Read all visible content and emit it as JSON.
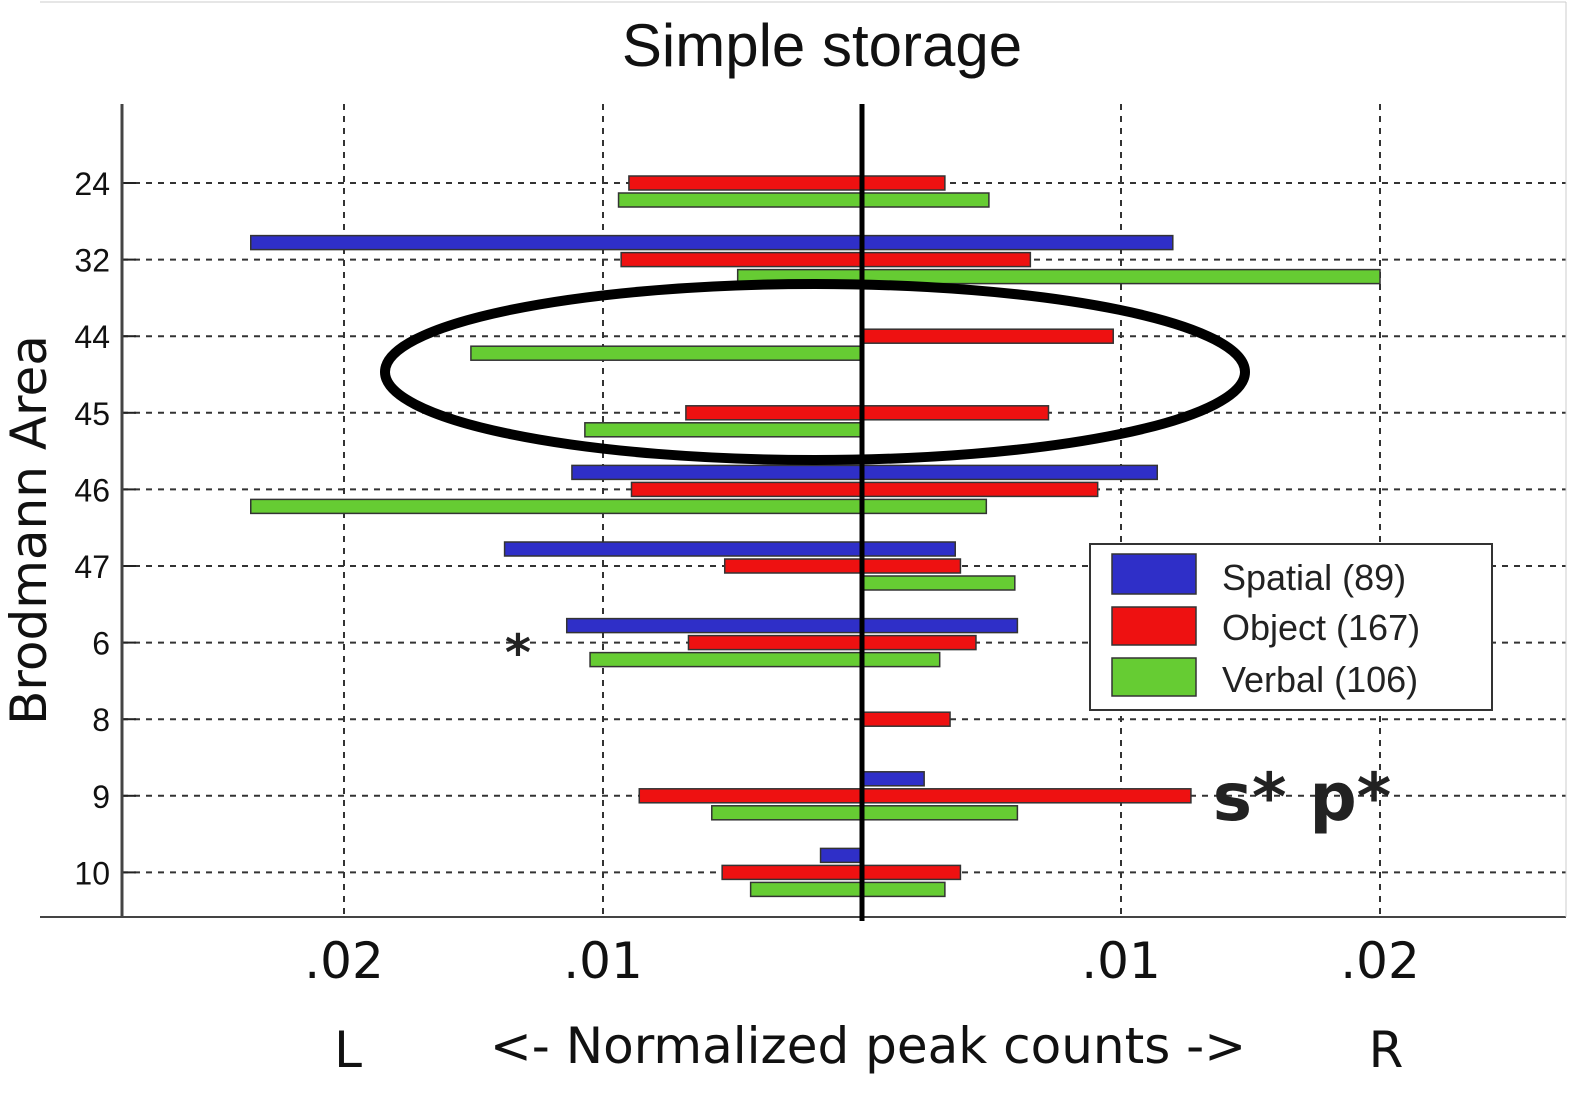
{
  "chart_data": {
    "type": "bar",
    "orientation": "horizontal-diverging",
    "title": "Simple storage",
    "ylabel": "Brodmann Area",
    "xlabel_left": "L",
    "xlabel": "<- Normalized peak counts ->",
    "xlabel_right": "R",
    "categories": [
      "24",
      "32",
      "44",
      "45",
      "46",
      "47",
      "6",
      "8",
      "9",
      "10"
    ],
    "xtick_values": [
      -0.02,
      -0.01,
      0.01,
      0.02
    ],
    "xtick_labels": [
      ".02",
      ".01",
      ".01",
      ".02"
    ],
    "xlim": [
      -0.0285,
      0.0265
    ],
    "grid": true,
    "legend_position": "right",
    "series": [
      {
        "name": "Spatial (89)",
        "color": "#2f2fc8",
        "left": [
          0,
          0.0236,
          0,
          0,
          0.0112,
          0.0138,
          0.0114,
          0,
          0,
          0.0016
        ],
        "right": [
          0,
          0.012,
          0,
          0,
          0.0114,
          0.0036,
          0.006,
          0,
          0.0024,
          0
        ]
      },
      {
        "name": "Object (167)",
        "color": "#ee1111",
        "left": [
          0.009,
          0.0093,
          0,
          0.0068,
          0.0089,
          0.0053,
          0.0067,
          0,
          0.0086,
          0.0054
        ],
        "right": [
          0.0032,
          0.0065,
          0.0097,
          0.0072,
          0.0091,
          0.0038,
          0.0044,
          0.0034,
          0.0127,
          0.0038
        ]
      },
      {
        "name": "Verbal (106)",
        "color": "#66cc33",
        "left": [
          0.0094,
          0.0048,
          0.0151,
          0.0107,
          0.0236,
          0,
          0.0105,
          0,
          0.0058,
          0.0043
        ],
        "right": [
          0.0049,
          0.02,
          0,
          0,
          0.0048,
          0.0059,
          0.003,
          0,
          0.006,
          0.0032
        ]
      }
    ],
    "annotations": [
      "*",
      "s* p*"
    ]
  }
}
